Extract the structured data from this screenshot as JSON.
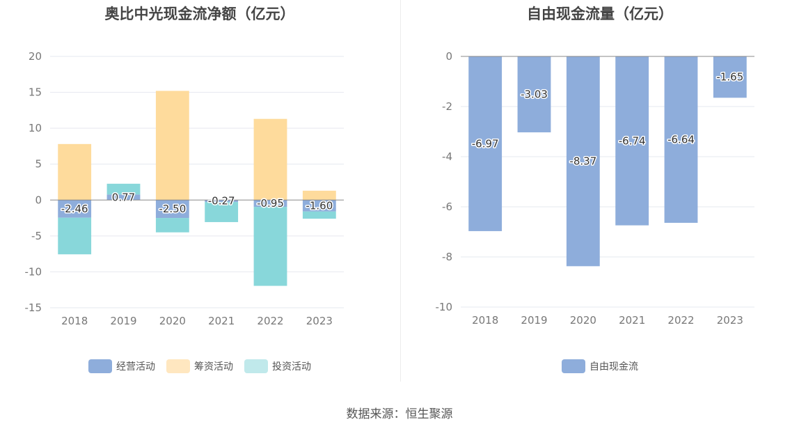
{
  "source": "数据来源：恒生聚源",
  "chart_data": [
    {
      "type": "bar",
      "stacked": true,
      "title": "奥比中光现金流净额（亿元）",
      "categories": [
        "2018",
        "2019",
        "2020",
        "2021",
        "2022",
        "2023"
      ],
      "series": [
        {
          "name": "经营活动",
          "values": [
            -2.46,
            0.77,
            -2.5,
            -0.27,
            -0.95,
            -1.6
          ],
          "color": "#8eaddb",
          "labels": [
            "-2.46",
            "0.77",
            "-2.50",
            "-0.27",
            "-0.95",
            "-1.60"
          ]
        },
        {
          "name": "筹资活动",
          "values": [
            7.8,
            0.0,
            15.2,
            0.0,
            11.3,
            1.3
          ],
          "color": "#fedb9c"
        },
        {
          "name": "投资活动",
          "values": [
            -5.1,
            1.5,
            -2.0,
            -2.8,
            -11.0,
            -1.0
          ],
          "color": "#88d7da"
        }
      ],
      "legend_colors": [
        "#8eaddb",
        "#ffe7c0",
        "#c0e9eb"
      ],
      "ylim": [
        -15,
        20
      ],
      "yticks": [
        20,
        15,
        10,
        5,
        0,
        -5,
        -10,
        -15
      ],
      "ytick_labels": [
        "20",
        "15",
        "10",
        "5",
        "0",
        "-5",
        "-10",
        "-15"
      ],
      "legend_position": "bottom",
      "grid": true
    },
    {
      "type": "bar",
      "title": "自由现金流量（亿元）",
      "categories": [
        "2018",
        "2019",
        "2020",
        "2021",
        "2022",
        "2023"
      ],
      "series": [
        {
          "name": "自由现金流",
          "values": [
            -6.97,
            -3.03,
            -8.37,
            -6.74,
            -6.64,
            -1.65
          ],
          "color": "#8eaddb",
          "labels": [
            "-6.97",
            "-3.03",
            "-8.37",
            "-6.74",
            "-6.64",
            "-1.65"
          ]
        }
      ],
      "legend_colors": [
        "#8eaddb"
      ],
      "ylim": [
        -10,
        0
      ],
      "yticks": [
        0,
        -2,
        -4,
        -6,
        -8,
        -10
      ],
      "ytick_labels": [
        "0",
        "-2",
        "-4",
        "-6",
        "-8",
        "-10"
      ],
      "legend_position": "bottom",
      "grid": true
    }
  ]
}
